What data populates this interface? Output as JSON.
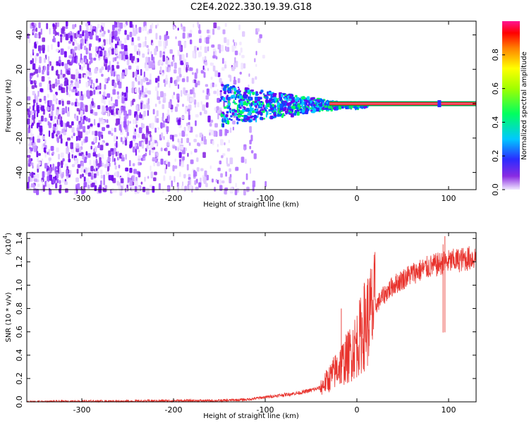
{
  "title": "C2E4.2022.330.19.39.G18",
  "chart_data": [
    {
      "type": "heatmap",
      "xlabel": "Height of straight line (km)",
      "ylabel": "Frequency (Hz)",
      "xlim": [
        -360,
        130
      ],
      "ylim": [
        -50,
        48
      ],
      "xticks": [
        -300,
        -200,
        -100,
        0,
        100
      ],
      "yticks": [
        -40,
        -20,
        0,
        20,
        40
      ],
      "grid": false,
      "colorbar": {
        "label": "Normalized spectral amplitude",
        "range": [
          0,
          1
        ],
        "ticks": [
          "0.0",
          "0.2",
          "0.4",
          "0.6",
          "0.8"
        ]
      },
      "description_values": {
        "noise_region_x": [
          -360,
          -120
        ],
        "signal_track_x": [
          -150,
          130
        ],
        "signal_frequency": 0
      }
    },
    {
      "type": "line",
      "xlabel": "Height of straight line (km)",
      "ylabel": "SNR (10 * v/v)",
      "scale_note": "(x10",
      "scale_exp": "4",
      "scale_close": ")",
      "xlim": [
        -360,
        130
      ],
      "ylim": [
        0,
        1.45
      ],
      "xticks": [
        -300,
        -200,
        -100,
        0,
        100
      ],
      "yticks": [
        "0.0",
        "0.2",
        "0.4",
        "0.6",
        "0.8",
        "1.0",
        "1.2",
        "1.4"
      ],
      "series": [
        {
          "color": "#e8322c",
          "x": [
            -360,
            -300,
            -250,
            -200,
            -150,
            -120,
            -100,
            -80,
            -60,
            -40,
            -30,
            -20,
            -10,
            0,
            10,
            20,
            30,
            40,
            60,
            80,
            100,
            115,
            130
          ],
          "y": [
            0.0,
            0.005,
            0.005,
            0.01,
            0.01,
            0.02,
            0.04,
            0.06,
            0.08,
            0.12,
            0.2,
            0.3,
            0.38,
            0.5,
            0.68,
            0.82,
            0.92,
            1.0,
            1.1,
            1.16,
            1.2,
            1.22,
            1.24
          ]
        }
      ],
      "spikes": [
        {
          "x": -17,
          "y": 0.8
        },
        {
          "x": 8,
          "y": 1.02
        },
        {
          "x": 96,
          "y": 1.42
        },
        {
          "x": 94,
          "y": 1.35
        }
      ]
    }
  ]
}
